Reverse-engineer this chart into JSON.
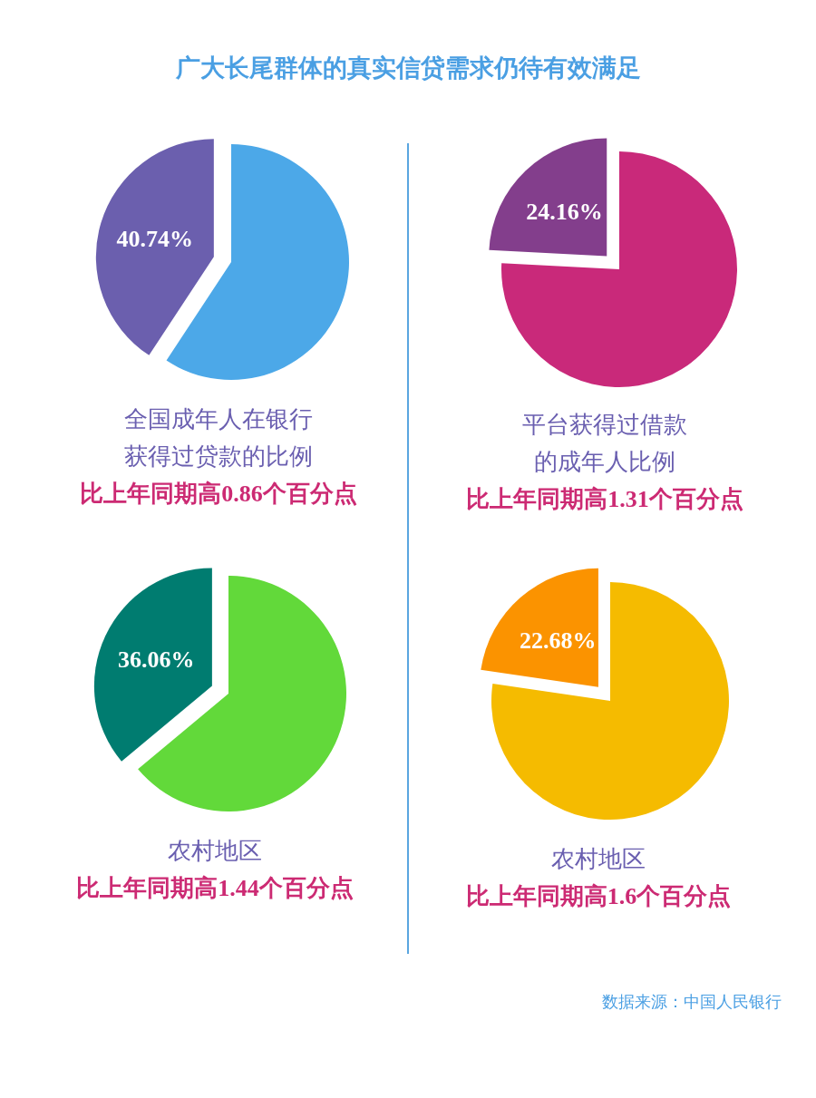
{
  "chart_data": [
    {
      "type": "other",
      "title": "广大长尾群体的真实信贷需求仍待有效满足"
    },
    {
      "type": "pie",
      "categories": [
        null,
        null
      ],
      "values": [
        59.26,
        40.74
      ],
      "colors": [
        "#4ca8e8",
        "#6b5fae"
      ],
      "value_labels": [
        null,
        "40.74%"
      ],
      "title": "全国成年人在银行获得过贷款的比例",
      "subtitle": "比上年同期高0.86个百分点"
    },
    {
      "type": "pie",
      "categories": [
        null,
        null
      ],
      "values": [
        75.84,
        24.16
      ],
      "colors": [
        "#c9297a",
        "#833e8c"
      ],
      "value_labels": [
        null,
        "24.16%"
      ],
      "title": "平台获得过借款的成年人比例",
      "subtitle": "比上年同期高1.31个百分点"
    },
    {
      "type": "pie",
      "categories": [
        null,
        null
      ],
      "values": [
        63.94,
        36.06
      ],
      "colors": [
        "#62d93a",
        "#007c70"
      ],
      "value_labels": [
        null,
        "36.06%"
      ],
      "title": "农村地区",
      "subtitle": "比上年同期高1.44个百分点"
    },
    {
      "type": "pie",
      "categories": [
        null,
        null
      ],
      "values": [
        77.32,
        22.68
      ],
      "colors": [
        "#f5bb00",
        "#fb9300"
      ],
      "value_labels": [
        null,
        "22.68%"
      ],
      "title": "农村地区",
      "subtitle": "比上年同期高1.6个百分点",
      "annotations": [
        "数据来源：中国人民银行"
      ]
    }
  ]
}
